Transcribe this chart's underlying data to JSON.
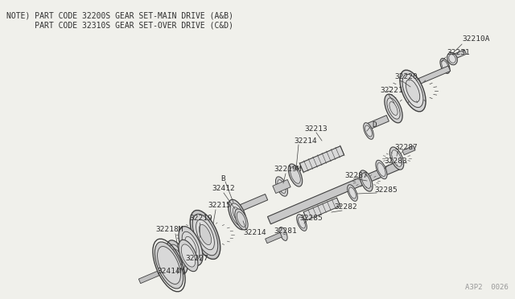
{
  "bg_color": "#f0f0eb",
  "line_color": "#404040",
  "text_color": "#303030",
  "note_line1": "NOTE) PART CODE 32200S GEAR SET-MAIN DRIVE (A&B)",
  "note_line2": "      PART CODE 32310S GEAR SET-OVER DRIVE (C&D)",
  "watermark": "A3P2  0026",
  "note_fontsize": 7.0,
  "label_fontsize": 6.8,
  "wm_fontsize": 6.5
}
